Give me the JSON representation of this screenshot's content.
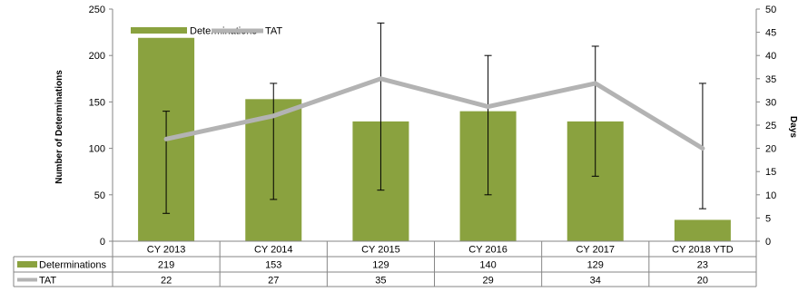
{
  "chart_data": {
    "type": "bar",
    "categories": [
      "CY 2013",
      "CY 2014",
      "CY 2015",
      "CY 2016",
      "CY 2017",
      "CY 2018 YTD"
    ],
    "series": [
      {
        "name": "Determinations",
        "type": "bar",
        "axis": "left",
        "color": "#8aa23f",
        "values": [
          219,
          153,
          129,
          140,
          129,
          23
        ]
      },
      {
        "name": "TAT",
        "type": "line",
        "axis": "right",
        "color": "#b3b3b3",
        "values": [
          22,
          27,
          35,
          29,
          34,
          20
        ],
        "error_low": [
          6,
          9,
          11,
          10,
          14,
          7
        ],
        "error_high": [
          28,
          34,
          47,
          40,
          42,
          34
        ]
      }
    ],
    "ylabel": "Number of Determinations",
    "ylabel_right": "Days",
    "ylim": [
      0,
      250
    ],
    "ylim_right": [
      0,
      50
    ],
    "yticks": [
      0,
      50,
      100,
      150,
      200,
      250
    ],
    "yticks_right": [
      0,
      5,
      10,
      15,
      20,
      25,
      30,
      35,
      40,
      45,
      50
    ],
    "legend_position": "top-left",
    "data_table": true,
    "grid": false
  }
}
